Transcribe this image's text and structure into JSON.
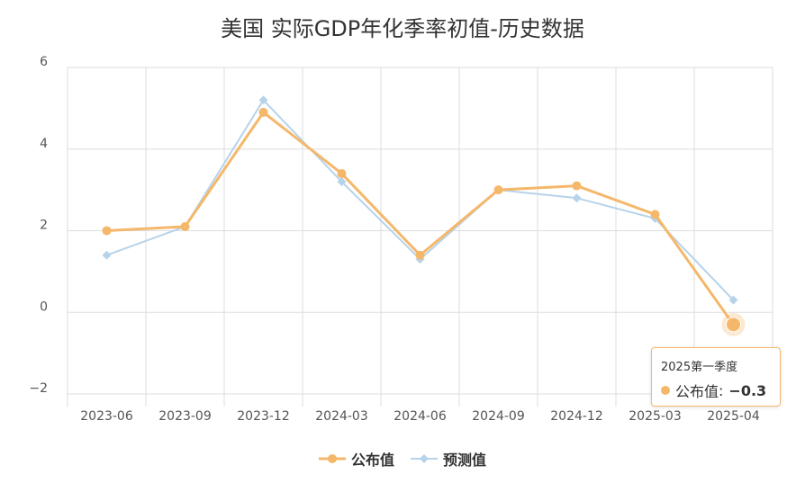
{
  "chart_data": {
    "type": "line",
    "title": "美国 实际GDP年化季率初值-历史数据",
    "categories": [
      "2023-06",
      "2023-09",
      "2023-12",
      "2024-03",
      "2024-06",
      "2024-09",
      "2024-12",
      "2025-03",
      "2025-04"
    ],
    "ylim": [
      -2,
      6
    ],
    "yticks": [
      -2,
      0,
      2,
      4,
      6
    ],
    "ytick_labels": [
      "−2",
      "0",
      "2",
      "4",
      "6"
    ],
    "grid": true,
    "legend_position": "bottom",
    "series": [
      {
        "name": "公布值",
        "color": "#f5b76a",
        "values": [
          2.0,
          2.1,
          4.9,
          3.4,
          1.4,
          3.0,
          3.1,
          2.4,
          -0.3
        ]
      },
      {
        "name": "预测值",
        "color": "#b7d3ea",
        "values": [
          1.4,
          2.1,
          5.2,
          3.2,
          1.3,
          3.0,
          2.8,
          2.3,
          0.3
        ]
      }
    ]
  },
  "tooltip": {
    "title": "2025第一季度",
    "series_name": "公布值",
    "separator": ": ",
    "value": "−0.3"
  }
}
